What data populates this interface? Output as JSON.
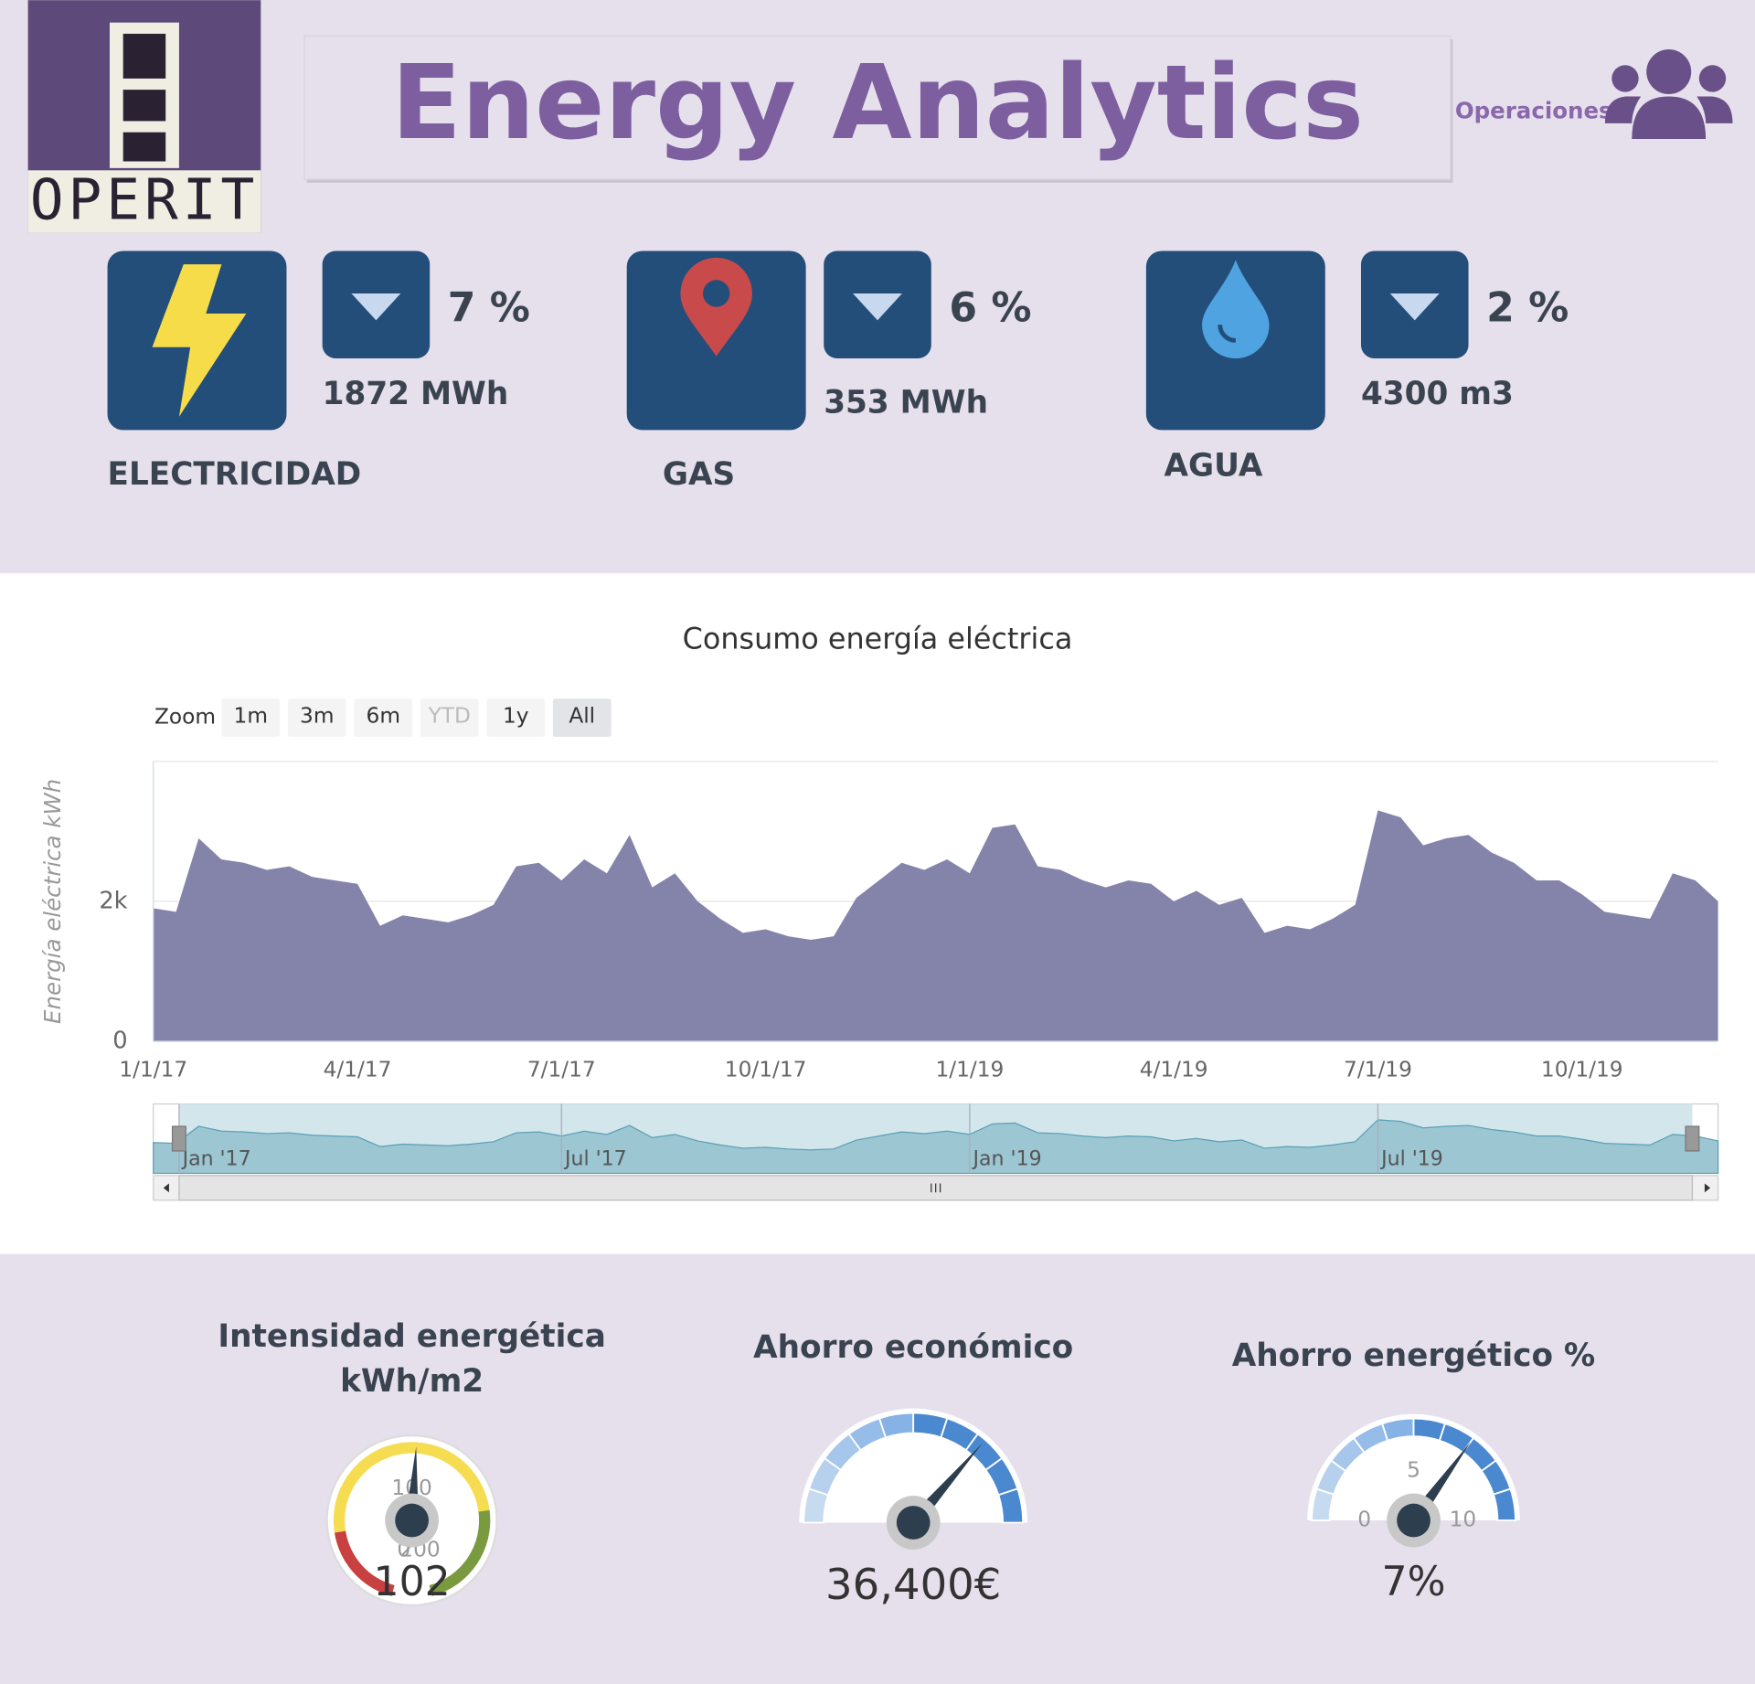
{
  "header": {
    "logo": "OPERIT",
    "title": "Energy Analytics",
    "user": "Operaciones"
  },
  "kpis": [
    {
      "label": "ELECTRICIDAD",
      "change": 7,
      "change_label": "7 %",
      "amount": "1872 MWh"
    },
    {
      "label": "GAS",
      "change": 6,
      "change_label": "6 %",
      "amount": "353 MWh"
    },
    {
      "label": "AGUA",
      "change": 2,
      "change_label": "2 %",
      "amount": "4300 m3"
    }
  ],
  "chart_data": {
    "type": "area",
    "title": "Consumo energía eléctrica",
    "y_label": "Energía eléctrica kWh",
    "color": "#8484aa",
    "zoom_label": "Zoom",
    "zoom_buttons": [
      "1m",
      "3m",
      "6m",
      "YTD",
      "1y",
      "All"
    ],
    "categories": [
      "1/1/17",
      null,
      null,
      null,
      null,
      null,
      null,
      null,
      null,
      "4/1/17",
      null,
      null,
      null,
      null,
      null,
      null,
      null,
      null,
      "7/1/17",
      null,
      null,
      null,
      null,
      null,
      null,
      null,
      null,
      "10/1/17",
      null,
      null,
      null,
      null,
      null,
      null,
      null,
      null,
      "1/1/19",
      null,
      null,
      null,
      null,
      null,
      null,
      null,
      null,
      "4/1/19",
      null,
      null,
      null,
      null,
      null,
      null,
      null,
      null,
      "7/1/19",
      null,
      null,
      null,
      null,
      null,
      null,
      null,
      null,
      "10/1/19",
      null,
      null,
      null,
      null,
      null,
      null
    ],
    "values": [
      1900,
      1850,
      2900,
      2600,
      2550,
      2450,
      2500,
      2350,
      2300,
      2250,
      1650,
      1800,
      1750,
      1700,
      1800,
      1950,
      2500,
      2550,
      2300,
      2600,
      2400,
      2950,
      2200,
      2400,
      2000,
      1750,
      1550,
      1600,
      1500,
      1450,
      1500,
      2050,
      2300,
      2550,
      2450,
      2600,
      2400,
      3050,
      3100,
      2500,
      2450,
      2300,
      2200,
      2300,
      2250,
      2000,
      2150,
      1950,
      2050,
      1550,
      1650,
      1600,
      1750,
      1950,
      3300,
      3200,
      2800,
      2900,
      2950,
      2700,
      2550,
      2300,
      2300,
      2100,
      1850,
      1800,
      1750,
      2400,
      2300,
      2000
    ],
    "ylim": [
      0,
      4000
    ],
    "yticks": [
      0,
      {
        "value": 2000,
        "label": "2k"
      },
      {
        "value": 4000,
        "label": ""
      }
    ],
    "grid": true,
    "navigator_ticks": [
      {
        "value": 0,
        "label": "Jan '17"
      },
      {
        "value": 18,
        "label": "Jul '17"
      },
      {
        "value": 36,
        "label": "Jan '19"
      },
      {
        "value": 54,
        "label": "Jul '19"
      }
    ]
  },
  "gauges": [
    {
      "type": "gauge",
      "title": [
        "Intensidad energética",
        "kWh/m2"
      ],
      "value": 102,
      "ylim": [
        0,
        200
      ],
      "yticks": [
        0,
        100,
        200
      ],
      "bands": [
        {
          "from": 0,
          "to": 40,
          "color": "#c94040"
        },
        {
          "from": 40,
          "to": 150,
          "color": "#f5dc50"
        },
        {
          "from": 150,
          "to": 200,
          "color": "#7a9a40"
        }
      ]
    },
    {
      "type": "gauge",
      "title": [
        "Ahorro económico"
      ],
      "value": 36400,
      "value_label": "36,400€",
      "ylim": [
        0,
        50000
      ],
      "color": "#4a88d0"
    },
    {
      "type": "gauge",
      "title": [
        "Ahorro energético %"
      ],
      "value": 7,
      "value_label": "7%",
      "ylim": [
        0,
        10
      ],
      "yticks": [
        0,
        5,
        10
      ],
      "color": "#4a88d0"
    }
  ]
}
